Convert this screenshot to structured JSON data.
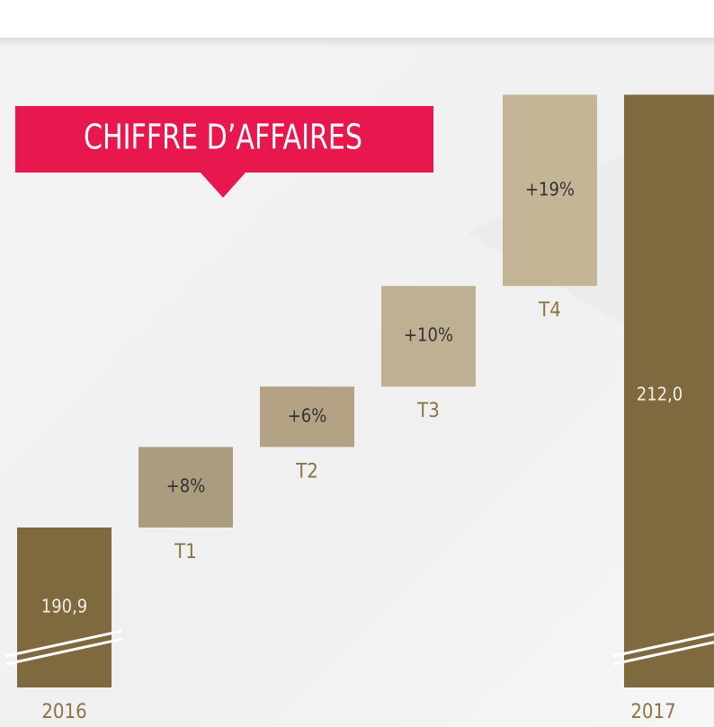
{
  "chart_data": {
    "type": "waterfall",
    "title": "CHIFFRE D’AFFAIRES",
    "categories": [
      "2016",
      "T1",
      "T2",
      "T3",
      "T4",
      "2017"
    ],
    "values": [
      190.9,
      8,
      6,
      10,
      19,
      212.0
    ],
    "value_labels": [
      "190,9",
      "+8%",
      "+6%",
      "+10%",
      "+19%",
      "212,0"
    ],
    "colors": [
      "#7f6a40",
      "#ab9c80",
      "#b3a283",
      "#bfb093",
      "#c5b597",
      "#7f6a40"
    ],
    "title_color": "#e8174e"
  }
}
